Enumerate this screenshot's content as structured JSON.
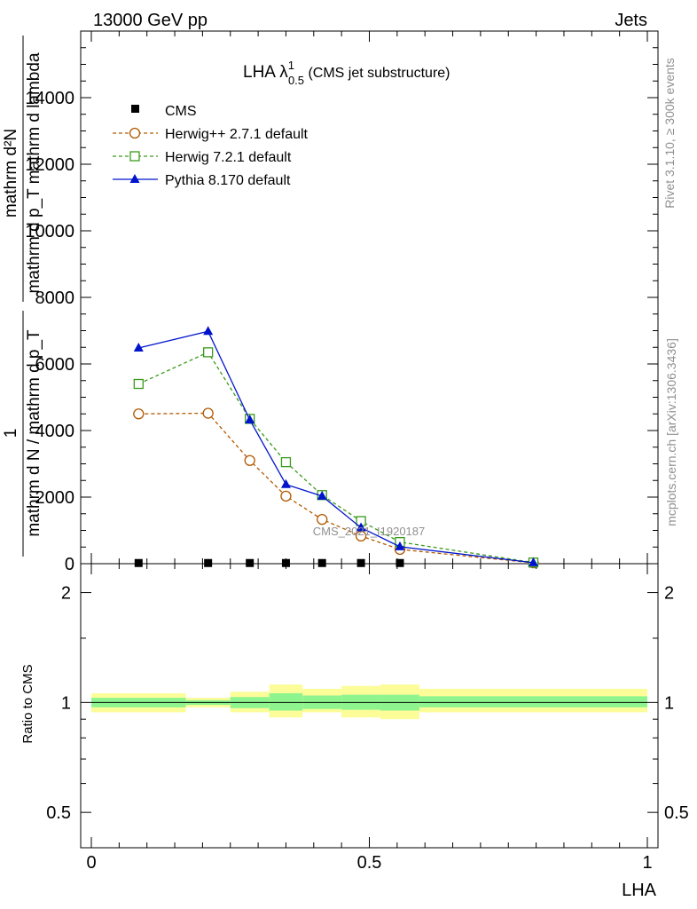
{
  "header": {
    "left": "13000 GeV pp",
    "right": "Jets"
  },
  "side_text": {
    "rivet": "Rivet 3.1.10, ≥ 300k events",
    "mcplots": "mcplots.cern.ch [arXiv:1306.3436]"
  },
  "watermark": "CMS_2021_I1920187",
  "colors": {
    "cms": "#000000",
    "herwigpp": "#b35900",
    "herwig7": "#3a9a1a",
    "pythia": "#0014cc",
    "band_inner": "#8ef58e",
    "band_outer": "#fcfc99"
  },
  "chart_data": [
    {
      "type": "line",
      "title_main": "LHA λ",
      "title_sup": "1",
      "title_sub": "0.5",
      "title_suffix": " (CMS jet substructure)",
      "ylabel_parts": {
        "one": "1",
        "den1": "mathrm d N / mathrm d p_T",
        "num2": "mathrm d²N",
        "den2": "mathrm d p_T mathrm d lambda"
      },
      "xlim": [
        0,
        1
      ],
      "ylim": [
        0,
        16000
      ],
      "yticks": [
        0,
        2000,
        4000,
        6000,
        8000,
        10000,
        12000,
        14000
      ],
      "ytick_labels": [
        "0",
        "2000",
        "4000",
        "6000",
        "8000",
        "10000",
        "12000",
        "14000"
      ],
      "x": [
        0.085,
        0.21,
        0.285,
        0.35,
        0.415,
        0.485,
        0.555,
        0.795
      ],
      "series": [
        {
          "name": "CMS",
          "marker": "filled-square",
          "style": "none",
          "values": [
            20,
            20,
            20,
            20,
            20,
            20,
            20,
            5
          ]
        },
        {
          "name": "Herwig++ 2.7.1 default",
          "marker": "open-circle",
          "style": "dashed",
          "values": [
            4500,
            4520,
            3100,
            2030,
            1330,
            830,
            430,
            25
          ]
        },
        {
          "name": "Herwig 7.2.1 default",
          "marker": "open-square",
          "style": "dashed",
          "values": [
            5400,
            6350,
            4350,
            3050,
            2060,
            1280,
            650,
            35
          ]
        },
        {
          "name": "Pythia 8.170 default",
          "marker": "filled-triangle",
          "style": "solid",
          "values": [
            6480,
            6980,
            4320,
            2380,
            2030,
            1080,
            510,
            30
          ]
        }
      ]
    },
    {
      "type": "area",
      "ylabel": "Ratio to CMS",
      "xlabel": "LHA",
      "ylog": true,
      "ylim": [
        0.4,
        2.4
      ],
      "yticks": [
        0.5,
        1,
        2
      ],
      "ytick_labels": [
        "0.5",
        "1",
        "2"
      ],
      "xticks": [
        0,
        0.5,
        1
      ],
      "xtick_labels": [
        "0",
        "0.5",
        "1"
      ],
      "bins": [
        {
          "lo": 0.0,
          "hi": 0.17,
          "inner": [
            0.97,
            1.03
          ],
          "outer": [
            0.94,
            1.06
          ]
        },
        {
          "lo": 0.17,
          "hi": 0.25,
          "inner": [
            0.985,
            1.015
          ],
          "outer": [
            0.97,
            1.03
          ]
        },
        {
          "lo": 0.25,
          "hi": 0.32,
          "inner": [
            0.965,
            1.035
          ],
          "outer": [
            0.94,
            1.07
          ]
        },
        {
          "lo": 0.32,
          "hi": 0.38,
          "inner": [
            0.95,
            1.06
          ],
          "outer": [
            0.91,
            1.12
          ]
        },
        {
          "lo": 0.38,
          "hi": 0.45,
          "inner": [
            0.96,
            1.045
          ],
          "outer": [
            0.94,
            1.09
          ]
        },
        {
          "lo": 0.45,
          "hi": 0.52,
          "inner": [
            0.955,
            1.05
          ],
          "outer": [
            0.91,
            1.11
          ]
        },
        {
          "lo": 0.52,
          "hi": 0.59,
          "inner": [
            0.95,
            1.05
          ],
          "outer": [
            0.9,
            1.12
          ]
        },
        {
          "lo": 0.59,
          "hi": 1.0,
          "inner": [
            0.97,
            1.04
          ],
          "outer": [
            0.94,
            1.09
          ]
        }
      ]
    }
  ]
}
